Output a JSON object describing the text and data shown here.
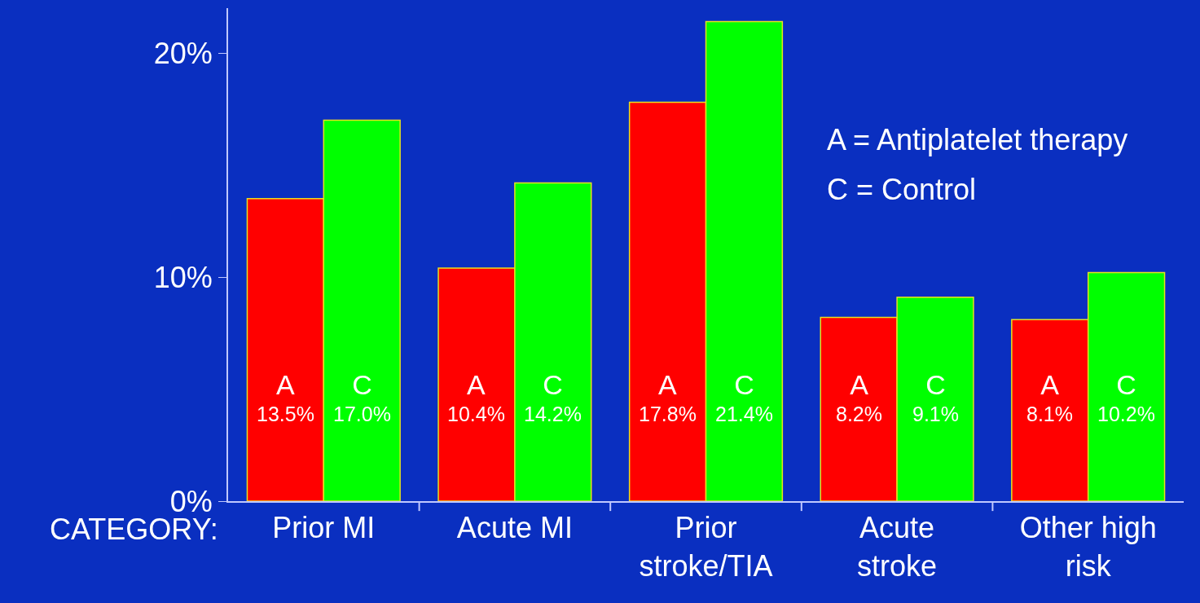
{
  "chart_data": {
    "type": "bar",
    "xlabel": "CATEGORY:",
    "categories": [
      "Prior MI",
      "Acute MI",
      "Prior stroke/TIA",
      "Acute stroke",
      "Other high risk"
    ],
    "series": [
      {
        "name": "A",
        "color": "#ff0000",
        "values": [
          13.5,
          10.4,
          17.8,
          8.2,
          8.1
        ],
        "value_labels": [
          "13.5%",
          "10.4%",
          "17.8%",
          "8.2%",
          "8.1%"
        ]
      },
      {
        "name": "C",
        "color": "#00ff00",
        "values": [
          17.0,
          14.2,
          21.4,
          9.1,
          10.2
        ],
        "value_labels": [
          "17.0%",
          "14.2%",
          "21.4%",
          "9.1%",
          "10.2%"
        ]
      }
    ],
    "ylim": [
      0,
      22
    ],
    "yticks": [
      {
        "value": 0,
        "label": "0%"
      },
      {
        "value": 10,
        "label": "10%"
      },
      {
        "value": 20,
        "label": "20%"
      }
    ],
    "grid": false,
    "legend": false,
    "annotations": [
      "A = Antiplatelet therapy",
      "C = Control"
    ]
  }
}
